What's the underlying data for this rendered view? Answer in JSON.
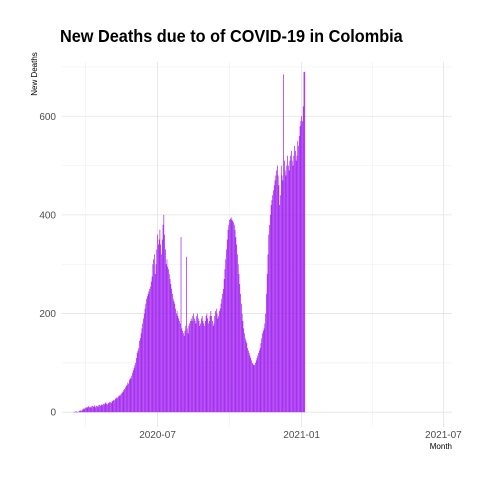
{
  "chart_data": {
    "type": "bar",
    "title": "New Deaths due to of COVID-19 in Colombia",
    "xlabel": "Month",
    "ylabel": "New Deaths",
    "x_tick_labels": [
      "2020-07",
      "2021-01",
      "2021-07"
    ],
    "x_tick_dates": [
      "2020-07-01",
      "2021-01-01",
      "2021-07-01"
    ],
    "y_ticks": [
      0,
      200,
      400,
      600
    ],
    "ylim": [
      -30,
      710
    ],
    "xlim": [
      "2020-03-01",
      "2021-07-12"
    ],
    "grid": true,
    "bar_color": "#a020f0",
    "start_date": "2020-03-16",
    "series": [
      {
        "values": [
          1,
          0,
          1,
          2,
          1,
          0,
          1,
          3,
          2,
          4,
          3,
          5,
          6,
          8,
          7,
          9,
          10,
          9,
          11,
          12,
          10,
          11,
          9,
          12,
          13,
          11,
          12,
          14,
          10,
          13,
          12,
          11,
          14,
          15,
          13,
          16,
          14,
          15,
          17,
          16,
          18,
          20,
          17,
          16,
          19,
          18,
          21,
          20,
          19,
          23,
          22,
          25,
          24,
          27,
          28,
          30,
          29,
          32,
          34,
          33,
          36,
          38,
          40,
          42,
          45,
          47,
          50,
          53,
          55,
          60,
          58,
          65,
          70,
          68,
          74,
          80,
          85,
          90,
          95,
          100,
          110,
          120,
          125,
          130,
          145,
          150,
          160,
          170,
          180,
          190,
          200,
          210,
          220,
          230,
          235,
          240,
          245,
          250,
          255,
          265,
          275,
          300,
          310,
          320,
          280,
          300,
          330,
          360,
          340,
          350,
          370,
          340,
          320,
          350,
          380,
          400,
          360,
          330,
          300,
          310,
          295,
          290,
          280,
          270,
          260,
          250,
          240,
          230,
          225,
          220,
          210,
          200,
          205,
          195,
          190,
          185,
          180,
          355,
          170,
          165,
          160,
          155,
          165,
          175,
          315,
          170,
          160,
          175,
          180,
          185,
          190,
          185,
          195,
          200,
          190,
          185,
          180,
          195,
          200,
          190,
          185,
          175,
          180,
          190,
          195,
          185,
          180,
          175,
          185,
          195,
          200,
          190,
          180,
          185,
          195,
          205,
          195,
          185,
          175,
          180,
          195,
          205,
          210,
          200,
          190,
          195,
          205,
          210,
          220,
          230,
          240,
          250,
          270,
          290,
          310,
          330,
          350,
          370,
          380,
          390,
          392,
          395,
          390,
          388,
          385,
          380,
          370,
          355,
          340,
          320,
          300,
          280,
          260,
          240,
          220,
          200,
          185,
          170,
          160,
          150,
          145,
          140,
          130,
          125,
          120,
          115,
          110,
          105,
          100,
          98,
          95,
          96,
          100,
          105,
          110,
          115,
          120,
          125,
          130,
          140,
          150,
          160,
          165,
          170,
          180,
          200,
          240,
          280,
          320,
          360,
          380,
          400,
          420,
          430,
          440,
          450,
          460,
          470,
          480,
          490,
          500,
          480,
          460,
          420,
          440,
          500,
          480,
          470,
          685,
          510,
          490,
          480,
          500,
          520,
          500,
          490,
          510,
          520,
          530,
          510,
          500,
          520,
          540,
          530,
          510,
          520,
          550,
          540,
          560,
          580,
          590,
          600,
          590,
          620,
          690,
          690
        ]
      }
    ]
  }
}
